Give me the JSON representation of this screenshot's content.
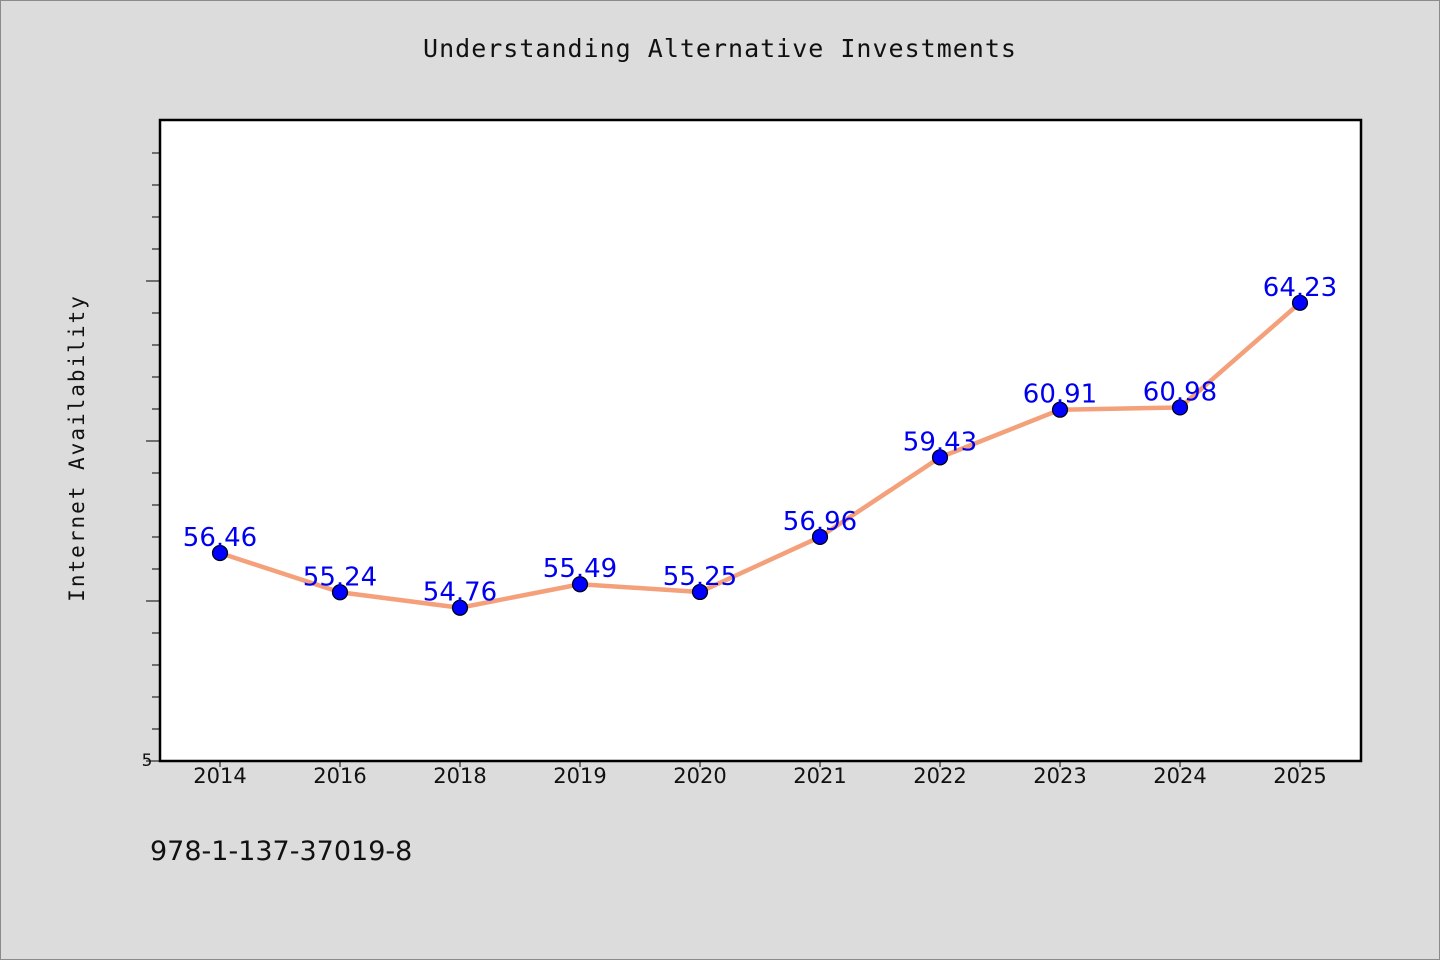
{
  "chart_data": {
    "type": "line",
    "title": "Understanding Alternative Investments",
    "xlabel": "",
    "ylabel": "Internet Availability",
    "categories": [
      "2014",
      "2016",
      "2018",
      "2019",
      "2020",
      "2021",
      "2022",
      "2023",
      "2024",
      "2025"
    ],
    "series": [
      {
        "values": [
          56.46,
          55.24,
          54.76,
          55.49,
          55.25,
          56.96,
          59.43,
          60.91,
          60.98,
          64.23
        ]
      }
    ],
    "y_tick_labels": [
      "5"
    ],
    "data_labels_shown": true,
    "grid": false,
    "colors": {
      "line": "#f4a07a",
      "marker": "#0000ff",
      "label": "#0000ee",
      "background": "#dcdcdc",
      "plot_background": "#ffffff"
    }
  },
  "footer": {
    "isbn": "978-1-137-37019-8"
  }
}
